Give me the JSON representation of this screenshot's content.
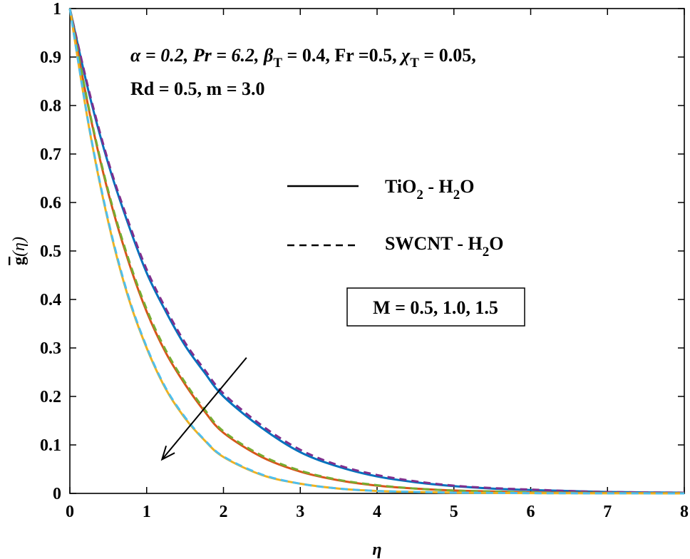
{
  "chart_data": {
    "type": "line",
    "xlabel": "η",
    "ylabel": {
      "main": "g",
      "arg": "(η)"
    },
    "xlim": [
      0,
      8
    ],
    "ylim": [
      0,
      1
    ],
    "xticks": [
      "0",
      "1",
      "2",
      "3",
      "4",
      "5",
      "6",
      "7",
      "8"
    ],
    "yticks": [
      "0",
      "0.1",
      "0.2",
      "0.3",
      "0.4",
      "0.5",
      "0.6",
      "0.7",
      "0.8",
      "0.9",
      "1"
    ],
    "parameters_line1": {
      "alpha": "α = 0.2, Pr = 6.2, ",
      "beta": "β",
      "beta_sub": "T",
      "beta_rest": " = 0.4, Fr =0.5, ",
      "chi": "χ",
      "chi_sub": "T",
      "chi_rest": " = 0.05,"
    },
    "parameters_line2": "Rd = 0.5, m = 3.0",
    "legend": {
      "solid": {
        "a": "TiO",
        "a_sub": "2",
        "b": " - H",
        "b_sub": "2",
        "c": "O"
      },
      "dashed": {
        "a": "SWCNT - H",
        "a_sub": "2",
        "b": "O"
      }
    },
    "annotation_box": "M = 0.5, 1.0, 1.5",
    "arrow": {
      "from": [
        2.3,
        0.28
      ],
      "to": [
        1.2,
        0.07
      ]
    },
    "series": [
      {
        "style": "solid",
        "color": "#0072BD",
        "x": [
          0,
          0.25,
          0.5,
          0.75,
          1,
          1.25,
          1.5,
          1.75,
          2,
          2.5,
          3,
          3.5,
          4,
          4.5,
          5,
          5.5,
          6,
          6.5,
          7,
          7.5,
          8
        ],
        "y": [
          1,
          0.825,
          0.68,
          0.56,
          0.455,
          0.375,
          0.305,
          0.25,
          0.2,
          0.135,
          0.085,
          0.055,
          0.035,
          0.023,
          0.015,
          0.01,
          0.007,
          0.005,
          0.003,
          0.002,
          0.0015
        ]
      },
      {
        "style": "dashed",
        "color": "#7E2F8E",
        "x": [
          0,
          0.25,
          0.5,
          0.75,
          1,
          1.25,
          1.5,
          1.75,
          2,
          2.5,
          3,
          3.5,
          4,
          4.5,
          5,
          5.5,
          6,
          6.5,
          7,
          7.5,
          8
        ],
        "y": [
          1,
          0.83,
          0.685,
          0.566,
          0.462,
          0.381,
          0.311,
          0.256,
          0.206,
          0.14,
          0.09,
          0.058,
          0.038,
          0.025,
          0.016,
          0.011,
          0.008,
          0.005,
          0.003,
          0.002,
          0.0015
        ]
      },
      {
        "style": "solid",
        "color": "#D95319",
        "x": [
          0,
          0.25,
          0.5,
          0.75,
          1,
          1.25,
          1.5,
          1.75,
          2,
          2.5,
          3,
          3.5,
          4,
          4.5,
          5,
          5.5,
          6,
          6.5,
          7,
          7.5,
          8
        ],
        "y": [
          1,
          0.79,
          0.62,
          0.485,
          0.375,
          0.29,
          0.225,
          0.17,
          0.125,
          0.075,
          0.045,
          0.027,
          0.016,
          0.01,
          0.006,
          0.004,
          0.002,
          0.0015,
          0.001,
          0.0005,
          0.0003
        ]
      },
      {
        "style": "dashed",
        "color": "#77AC30",
        "x": [
          0,
          0.25,
          0.5,
          0.75,
          1,
          1.25,
          1.5,
          1.75,
          2,
          2.5,
          3,
          3.5,
          4,
          4.5,
          5,
          5.5,
          6,
          6.5,
          7,
          7.5,
          8
        ],
        "y": [
          1,
          0.793,
          0.624,
          0.49,
          0.38,
          0.295,
          0.229,
          0.174,
          0.128,
          0.078,
          0.047,
          0.028,
          0.017,
          0.01,
          0.006,
          0.004,
          0.002,
          0.0015,
          0.001,
          0.0005,
          0.0003
        ]
      },
      {
        "style": "solid",
        "color": "#EDB120",
        "x": [
          0,
          0.25,
          0.5,
          0.75,
          1,
          1.25,
          1.5,
          1.75,
          2,
          2.5,
          3,
          3.5,
          4,
          4.5,
          5,
          5.5,
          6,
          6.5,
          7,
          7.5,
          8
        ],
        "y": [
          1,
          0.755,
          0.56,
          0.41,
          0.3,
          0.215,
          0.155,
          0.11,
          0.075,
          0.038,
          0.02,
          0.01,
          0.005,
          0.003,
          0.0015,
          0.001,
          0.0005,
          0.0003,
          0.0002,
          0.0001,
          0
        ]
      },
      {
        "style": "dashed",
        "color": "#4DBEEE",
        "x": [
          0,
          0.25,
          0.5,
          0.75,
          1,
          1.25,
          1.5,
          1.75,
          2,
          2.5,
          3,
          3.5,
          4,
          4.5,
          5,
          5.5,
          6,
          6.5,
          7,
          7.5,
          8
        ],
        "y": [
          1,
          0.757,
          0.563,
          0.413,
          0.302,
          0.217,
          0.157,
          0.111,
          0.076,
          0.039,
          0.02,
          0.01,
          0.005,
          0.003,
          0.0015,
          0.001,
          0.0005,
          0.0003,
          0.0002,
          0.0001,
          0
        ]
      }
    ]
  }
}
